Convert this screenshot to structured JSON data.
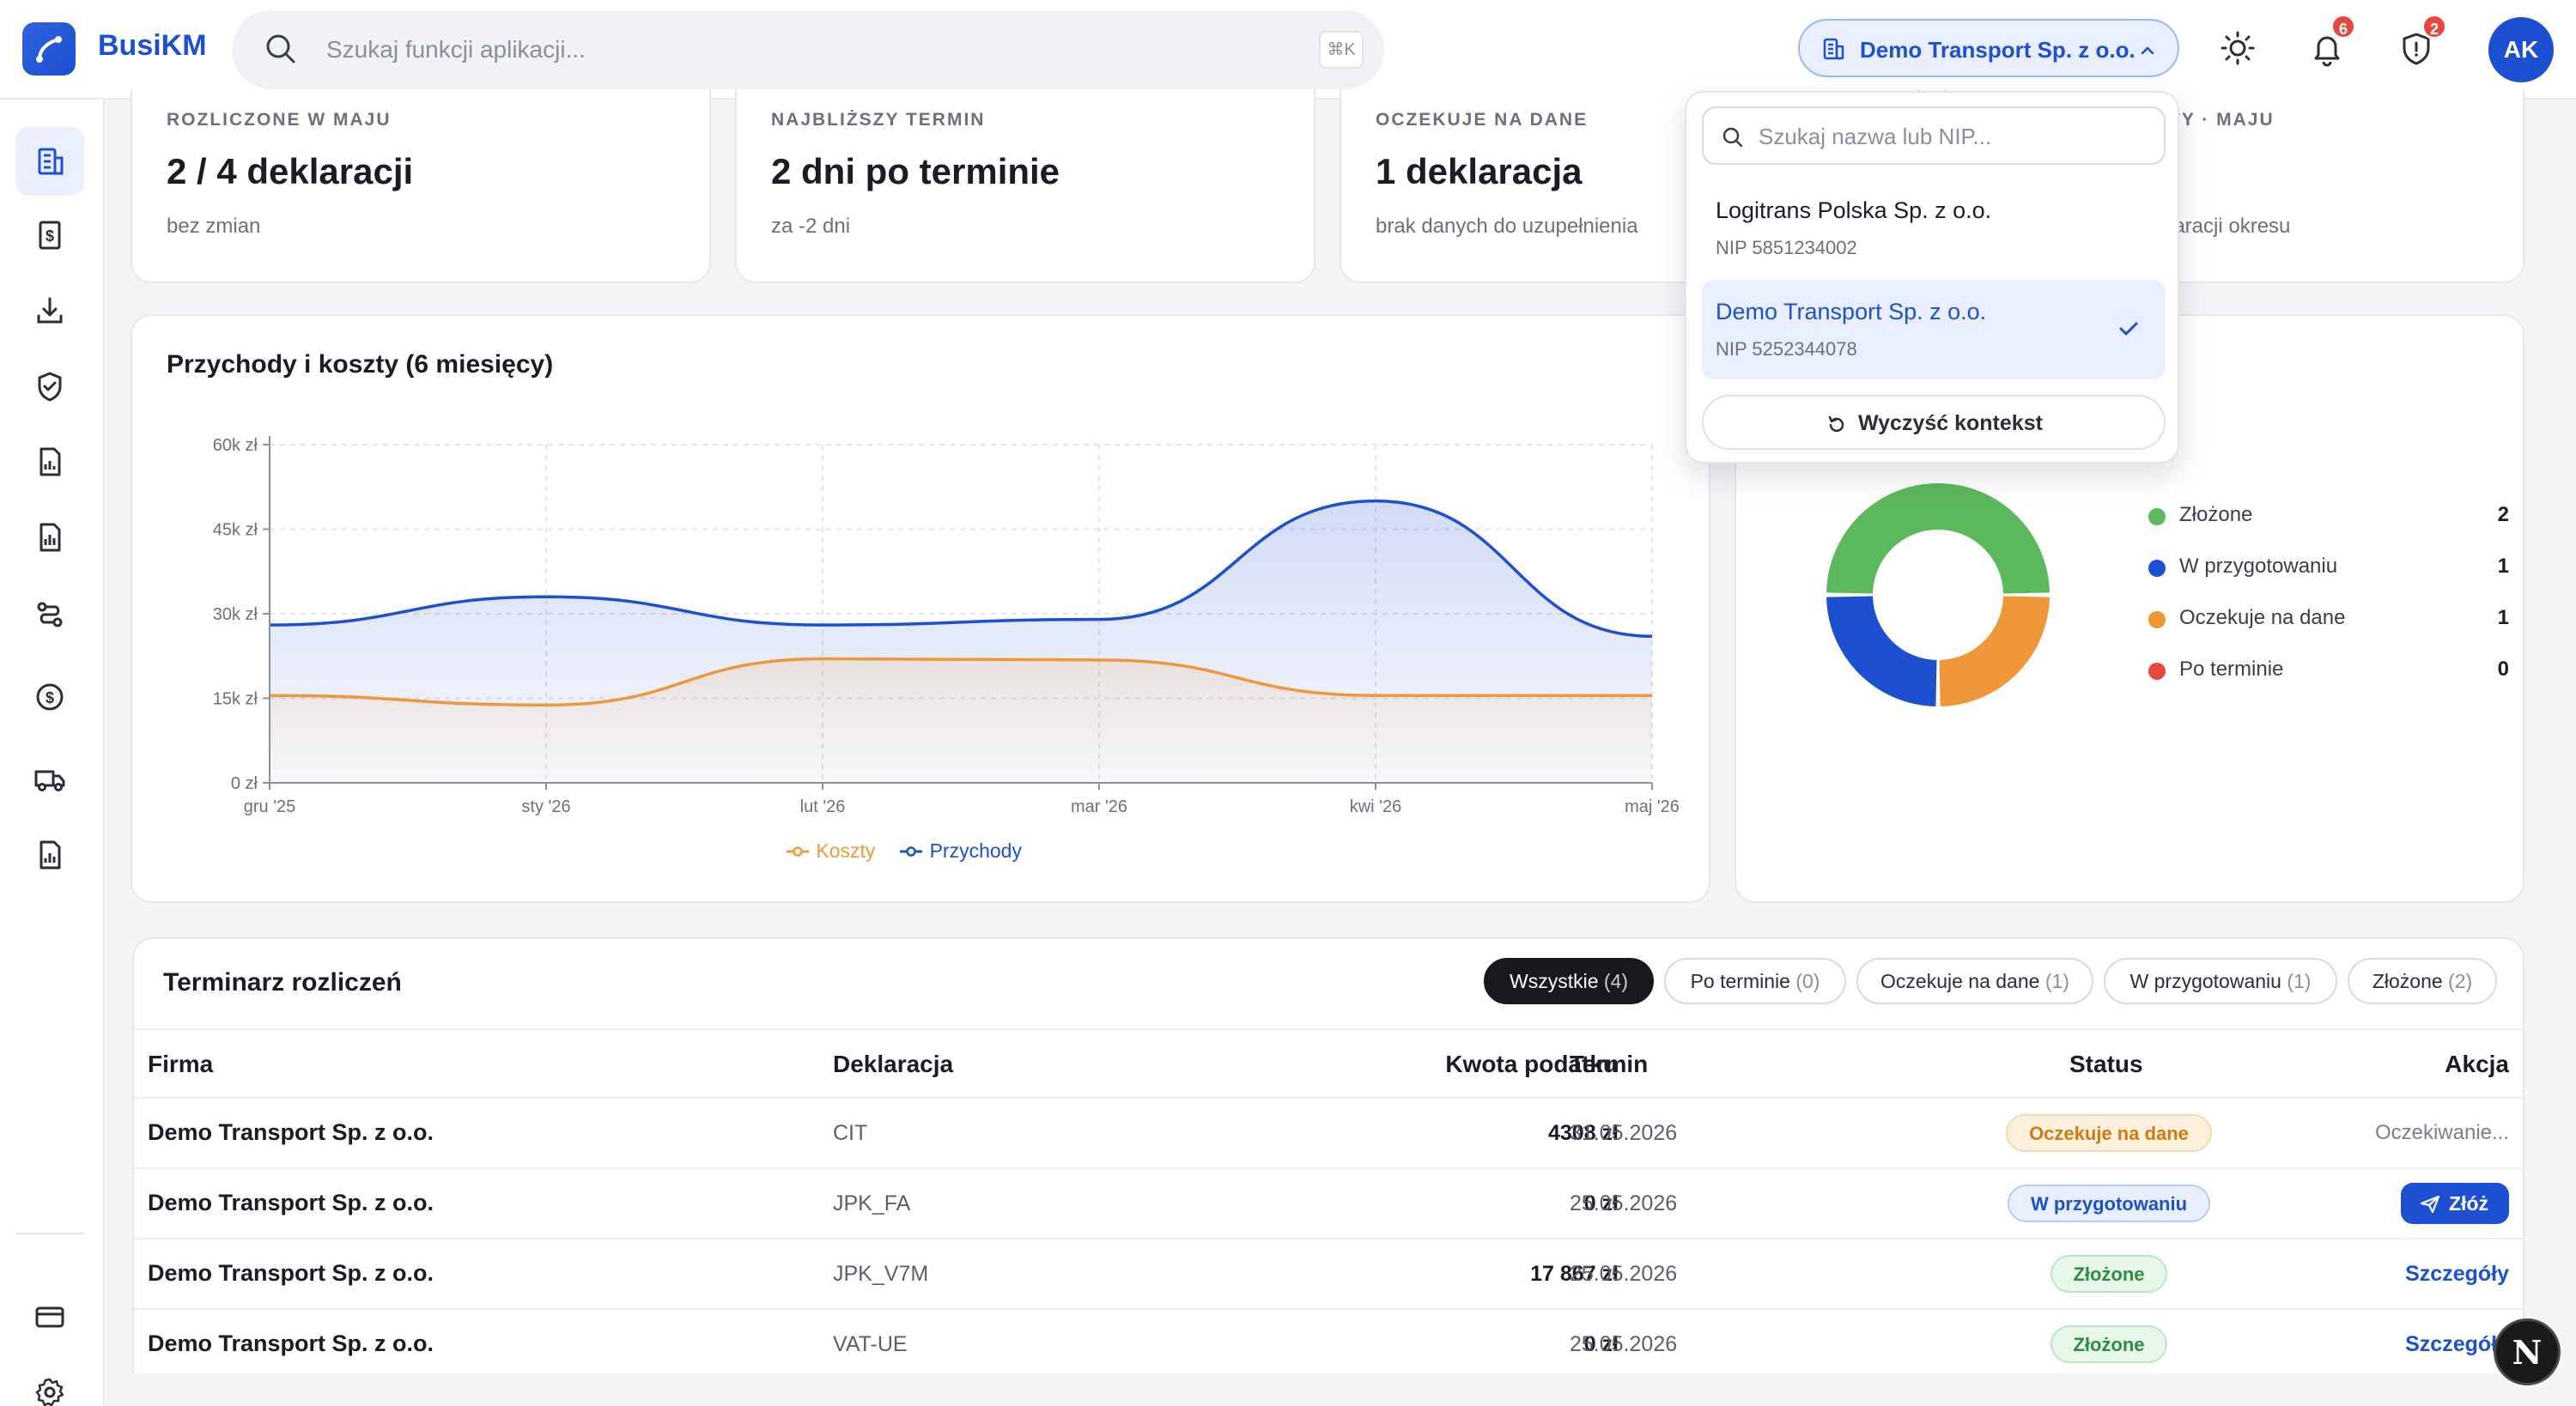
{
  "app": {
    "brand": "BusiKM"
  },
  "search": {
    "placeholder": "Szukaj funkcji aplikacji...",
    "shortcut": "⌘K"
  },
  "context": {
    "label": "Demo Transport Sp. z o.o.",
    "dropdown": {
      "search_placeholder": "Szukaj nazwa lub NIP...",
      "items": [
        {
          "name": "Logitrans Polska Sp. z o.o.",
          "nip": "NIP 5851234002",
          "selected": false
        },
        {
          "name": "Demo Transport Sp. z o.o.",
          "nip": "NIP 5252344078",
          "selected": true
        }
      ],
      "clear_label": "Wyczyść kontekst"
    }
  },
  "header": {
    "notifications_count": "6",
    "alerts_count": "2",
    "avatar_initials": "AK"
  },
  "sidebar": {
    "icons": [
      "dashboard-building-icon",
      "invoice-dollar-icon",
      "download-icon",
      "shield-check-icon",
      "report-chart-icon",
      "document-chart-icon",
      "workflow-route-icon",
      "currency-coin-icon",
      "truck-icon",
      "report-bars-icon",
      "credit-card-icon",
      "settings-gear-icon"
    ]
  },
  "stats": [
    {
      "label": "ROZLICZONE W MAJU",
      "value": "2 / 4 deklaracji",
      "sub": "bez zmian"
    },
    {
      "label": "NAJBLIŻSZY TERMIN",
      "value": "2 dni po terminie",
      "sub": "za -2 dni"
    },
    {
      "label": "OCZEKUJE NA DANE",
      "value": "1 deklaracja",
      "sub": "brak danych do uzupełnienia"
    },
    {
      "label": "TY · MAJU",
      "value": "",
      "sub": "laracji okresu"
    }
  ],
  "chart_data": {
    "type": "area",
    "title": "Przychody i koszty (6 miesięcy)",
    "categories": [
      "gru '25",
      "sty '26",
      "lut '26",
      "mar '26",
      "kwi '26",
      "maj '26"
    ],
    "series": [
      {
        "name": "Koszty",
        "color": "#f0973a",
        "values": [
          15500,
          13800,
          22000,
          21800,
          15500,
          15500
        ]
      },
      {
        "name": "Przychody",
        "color": "#1d4fd1",
        "values": [
          28000,
          33000,
          28000,
          29000,
          50000,
          26000
        ]
      }
    ],
    "y_ticks": [
      "0 zł",
      "15k zł",
      "30k zł",
      "45k zł",
      "60k zł"
    ],
    "ylim": [
      0,
      60000
    ],
    "grid": true,
    "legend": "bottom"
  },
  "donut": {
    "items": [
      {
        "name": "Złożone",
        "count": "2",
        "value": 2,
        "color": "#5cb85c"
      },
      {
        "name": "W przygotowaniu",
        "count": "1",
        "value": 1,
        "color": "#1d4fd1"
      },
      {
        "name": "Oczekuje na dane",
        "count": "1",
        "value": 1,
        "color": "#f0973a"
      },
      {
        "name": "Po terminie",
        "count": "0",
        "value": 0,
        "color": "#e5483e"
      }
    ]
  },
  "table": {
    "title": "Terminarz rozliczeń",
    "filters": [
      {
        "label": "Wszystkie",
        "count": "(4)",
        "active": true
      },
      {
        "label": "Po terminie",
        "count": "(0)",
        "active": false
      },
      {
        "label": "Oczekuje na dane",
        "count": "(1)",
        "active": false
      },
      {
        "label": "W przygotowaniu",
        "count": "(1)",
        "active": false
      },
      {
        "label": "Złożone",
        "count": "(2)",
        "active": false
      }
    ],
    "columns": [
      "Firma",
      "Deklaracja",
      "Kwota podatku",
      "Termin",
      "Status",
      "Akcja"
    ],
    "rows": [
      {
        "firma": "Demo Transport Sp. z o.o.",
        "deklaracja": "CIT",
        "kwota": "4308 zł",
        "termin": "31.05.2026",
        "status": "Oczekuje na dane",
        "akcja": "Oczekiwanie..."
      },
      {
        "firma": "Demo Transport Sp. z o.o.",
        "deklaracja": "JPK_FA",
        "kwota": "0 zł",
        "termin": "25.05.2026",
        "status": "W przygotowaniu",
        "akcja": "Złóż"
      },
      {
        "firma": "Demo Transport Sp. z o.o.",
        "deklaracja": "JPK_V7M",
        "kwota": "17 867 zł",
        "termin": "25.05.2026",
        "status": "Złożone",
        "akcja": "Szczegóły"
      },
      {
        "firma": "Demo Transport Sp. z o.o.",
        "deklaracja": "VAT-UE",
        "kwota": "0 zł",
        "termin": "25.05.2026",
        "status": "Złożone",
        "akcja": "Szczegóły"
      }
    ]
  },
  "fab": {
    "label": "N"
  }
}
